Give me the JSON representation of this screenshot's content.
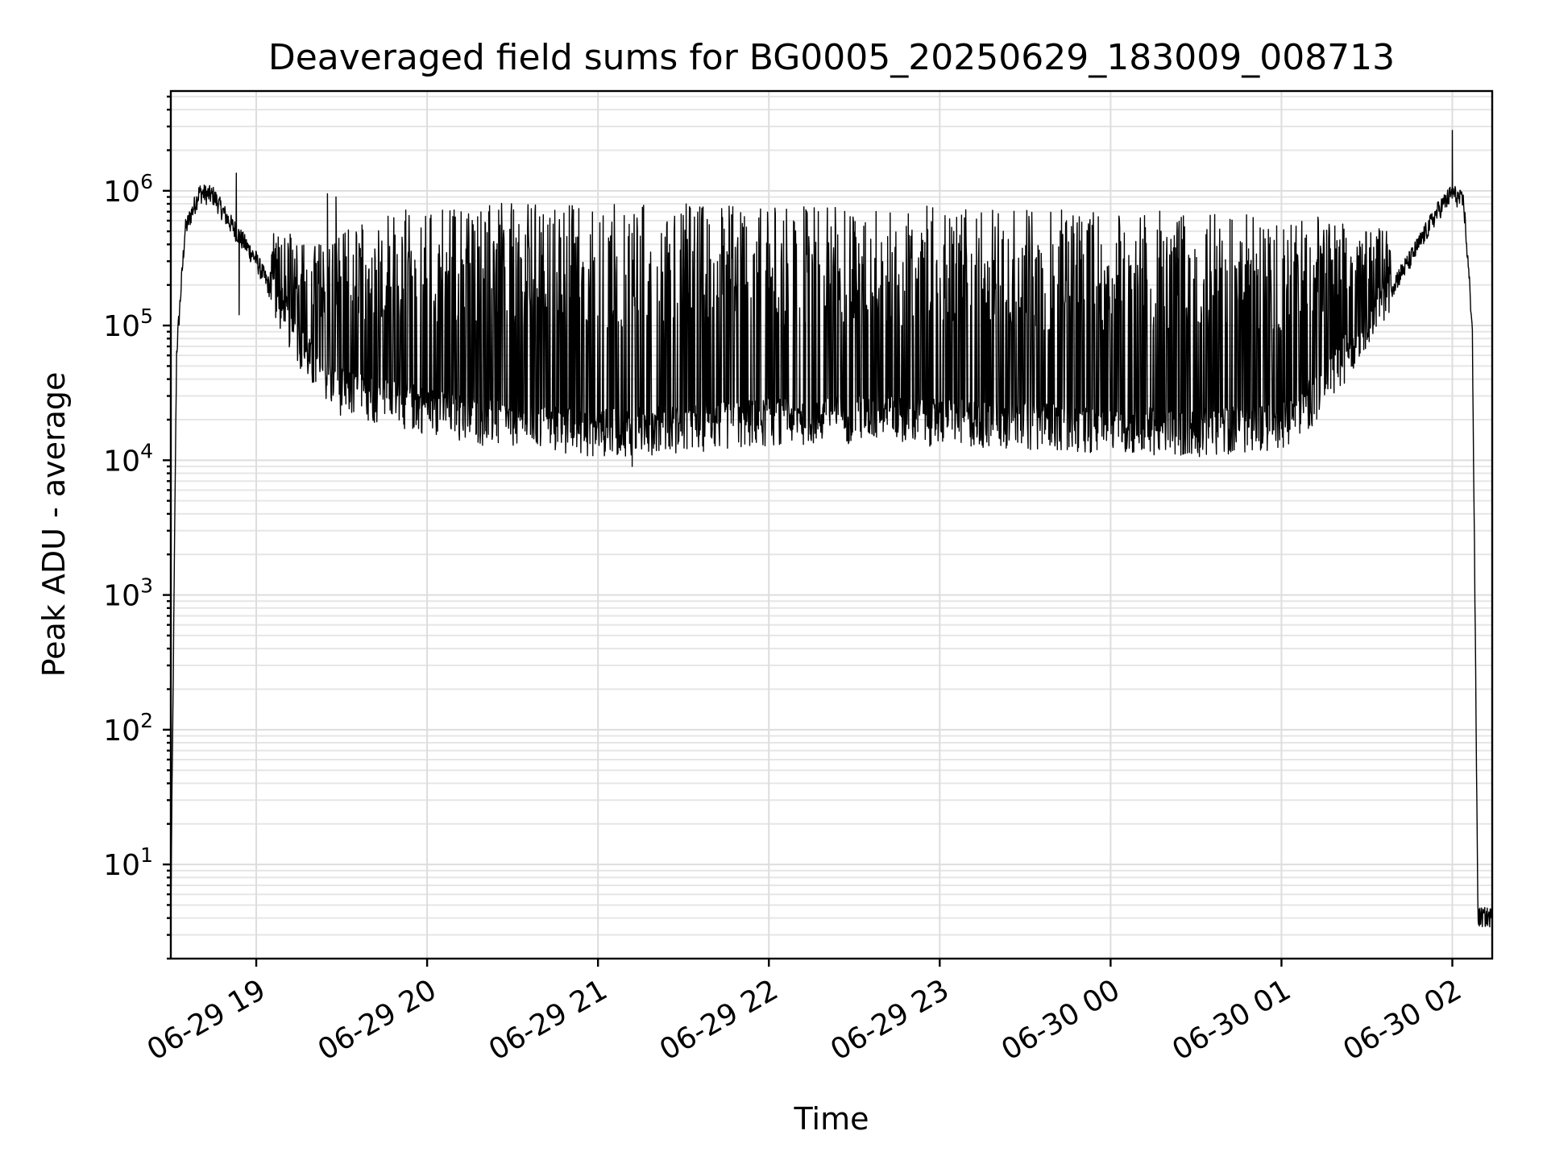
{
  "chart_data": {
    "type": "line",
    "title": "Deaveraged field sums for BG0005_20250629_183009_008713",
    "xlabel": "Time",
    "ylabel": "Peak ADU - average",
    "yscale": "log",
    "grid": true,
    "grid_minor": true,
    "legend": "none",
    "xlim": [
      "2025-06-29 18:30",
      "2025-06-30 02:14"
    ],
    "ylim": [
      2,
      5500000
    ],
    "x_ticks": [
      {
        "label": "06-29 19",
        "value": "2025-06-29 19:00"
      },
      {
        "label": "06-29 20",
        "value": "2025-06-29 20:00"
      },
      {
        "label": "06-29 21",
        "value": "2025-06-29 21:00"
      },
      {
        "label": "06-29 22",
        "value": "2025-06-29 22:00"
      },
      {
        "label": "06-29 23",
        "value": "2025-06-29 23:00"
      },
      {
        "label": "06-30 00",
        "value": "2025-06-30 00:00"
      },
      {
        "label": "06-30 01",
        "value": "2025-06-30 01:00"
      },
      {
        "label": "06-30 02",
        "value": "2025-06-30 02:00"
      }
    ],
    "y_ticks": [
      {
        "base": "10",
        "exp": "1",
        "value": 10
      },
      {
        "base": "10",
        "exp": "2",
        "value": 100
      },
      {
        "base": "10",
        "exp": "3",
        "value": 1000
      },
      {
        "base": "10",
        "exp": "4",
        "value": 10000
      },
      {
        "base": "10",
        "exp": "5",
        "value": 100000
      },
      {
        "base": "10",
        "exp": "6",
        "value": 1000000
      }
    ],
    "series": [
      {
        "color": "#000000",
        "envelope": {
          "time": [
            "2025-06-29 18:30",
            "2025-06-29 18:32",
            "2025-06-29 18:35",
            "2025-06-29 18:40",
            "2025-06-29 18:45",
            "2025-06-29 18:50",
            "2025-06-29 19:00",
            "2025-06-29 19:10",
            "2025-06-29 19:20",
            "2025-06-29 19:30",
            "2025-06-29 19:45",
            "2025-06-29 20:00",
            "2025-06-29 20:20",
            "2025-06-29 20:40",
            "2025-06-29 21:00",
            "2025-06-29 21:30",
            "2025-06-29 22:00",
            "2025-06-29 22:30",
            "2025-06-29 23:00",
            "2025-06-29 23:30",
            "2025-06-30 00:00",
            "2025-06-30 00:30",
            "2025-06-30 01:00",
            "2025-06-30 01:15",
            "2025-06-30 01:30",
            "2025-06-30 01:45",
            "2025-06-30 01:55",
            "2025-06-30 02:00",
            "2025-06-30 02:04",
            "2025-06-30 02:07",
            "2025-06-30 02:09",
            "2025-06-30 02:14"
          ],
          "baseline": [
            4,
            60000,
            500000,
            950000,
            900000,
            600000,
            300000,
            110000,
            45000,
            30000,
            26000,
            22000,
            18000,
            16000,
            15000,
            16000,
            18000,
            19000,
            18000,
            17000,
            16000,
            15000,
            17000,
            30000,
            100000,
            300000,
            700000,
            950000,
            800000,
            100000,
            4,
            4
          ],
          "peak": [
            4,
            60000,
            500000,
            1000000,
            1150000,
            800000,
            600000,
            500000,
            400000,
            500000,
            700000,
            750000,
            800000,
            820000,
            830000,
            820000,
            800000,
            780000,
            770000,
            740000,
            720000,
            700000,
            680000,
            650000,
            500000,
            600000,
            1500000,
            2800000,
            900000,
            100000,
            4,
            4
          ]
        },
        "notable_peaks": [
          {
            "time": "2025-06-29 18:53",
            "value": 1350000
          },
          {
            "time": "2025-06-29 18:54",
            "value": 120000
          },
          {
            "time": "2025-06-29 19:25",
            "value": 950000
          },
          {
            "time": "2025-06-29 19:28",
            "value": 900000
          },
          {
            "time": "2025-06-29 21:12",
            "value": 9000
          },
          {
            "time": "2025-06-30 02:00",
            "value": 2800000
          }
        ]
      }
    ]
  }
}
